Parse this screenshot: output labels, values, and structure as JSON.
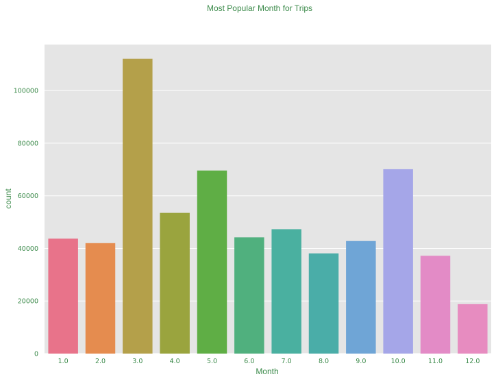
{
  "chart_data": {
    "type": "bar",
    "title": "Most Popular Month for Trips",
    "xlabel": "Month",
    "ylabel": "count",
    "categories": [
      "1.0",
      "2.0",
      "3.0",
      "4.0",
      "5.0",
      "6.0",
      "7.0",
      "8.0",
      "9.0",
      "10.0",
      "11.0",
      "12.0"
    ],
    "values": [
      43700,
      42000,
      112100,
      53500,
      69600,
      44200,
      47300,
      38100,
      42800,
      70100,
      37200,
      18800
    ],
    "ylim": [
      0,
      117500
    ],
    "yticks": [
      0,
      20000,
      40000,
      60000,
      80000,
      100000
    ],
    "grid": true,
    "colors": {
      "text": "#3b8a4a",
      "background": "#e5e5e5",
      "grid": "#ffffff",
      "bars": [
        "#e8738a",
        "#e58c4f",
        "#b4a04a",
        "#9aa43e",
        "#5fae45",
        "#50b07e",
        "#4ab0a0",
        "#4aada8",
        "#6fa5d6",
        "#a5a6e8",
        "#e38bc6",
        "#e78cc0"
      ]
    }
  }
}
